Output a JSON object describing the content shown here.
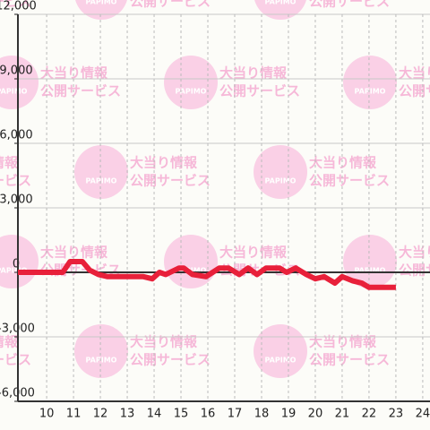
{
  "chart_data": {
    "type": "line",
    "watermark": {
      "brand": "PAPIMO",
      "line1": "大当り情報",
      "line2": "公開サービス"
    },
    "x": [
      8.93,
      10.6,
      10.87,
      11.33,
      11.6,
      11.93,
      12.27,
      13.6,
      13.93,
      14.2,
      14.43,
      14.93,
      15.1,
      15.43,
      15.93,
      16.43,
      16.77,
      17.17,
      17.5,
      17.83,
      18.17,
      18.67,
      18.93,
      19.27,
      19.67,
      20,
      20.33,
      20.73,
      21,
      21.4,
      21.73,
      22,
      23
    ],
    "series": [
      {
        "color": "#e8203a",
        "values": [
          0,
          0,
          500,
          500,
          100,
          -100,
          -200,
          -200,
          -300,
          0,
          -100,
          200,
          200,
          -100,
          -200,
          200,
          200,
          -100,
          200,
          -100,
          200,
          200,
          0,
          200,
          -100,
          -300,
          -200,
          -500,
          -200,
          -400,
          -500,
          -700,
          -700
        ]
      }
    ],
    "xlim": [
      8.93,
      24.27
    ],
    "ylim": [
      -6000,
      12000
    ],
    "xticks": [
      10,
      11,
      12,
      13,
      14,
      15,
      16,
      17,
      18,
      19,
      20,
      21,
      22,
      23,
      24
    ],
    "yticks": [
      {
        "value": -6000,
        "label": "-6,000"
      },
      {
        "value": -3000,
        "label": "-3,000"
      },
      0,
      {
        "value": 3000,
        "label": "3,000"
      },
      {
        "value": 6000,
        "label": "6,000"
      },
      {
        "value": 9000,
        "label": "9,000"
      },
      {
        "value": 12000,
        "label": "12,000"
      }
    ],
    "grid": true
  }
}
